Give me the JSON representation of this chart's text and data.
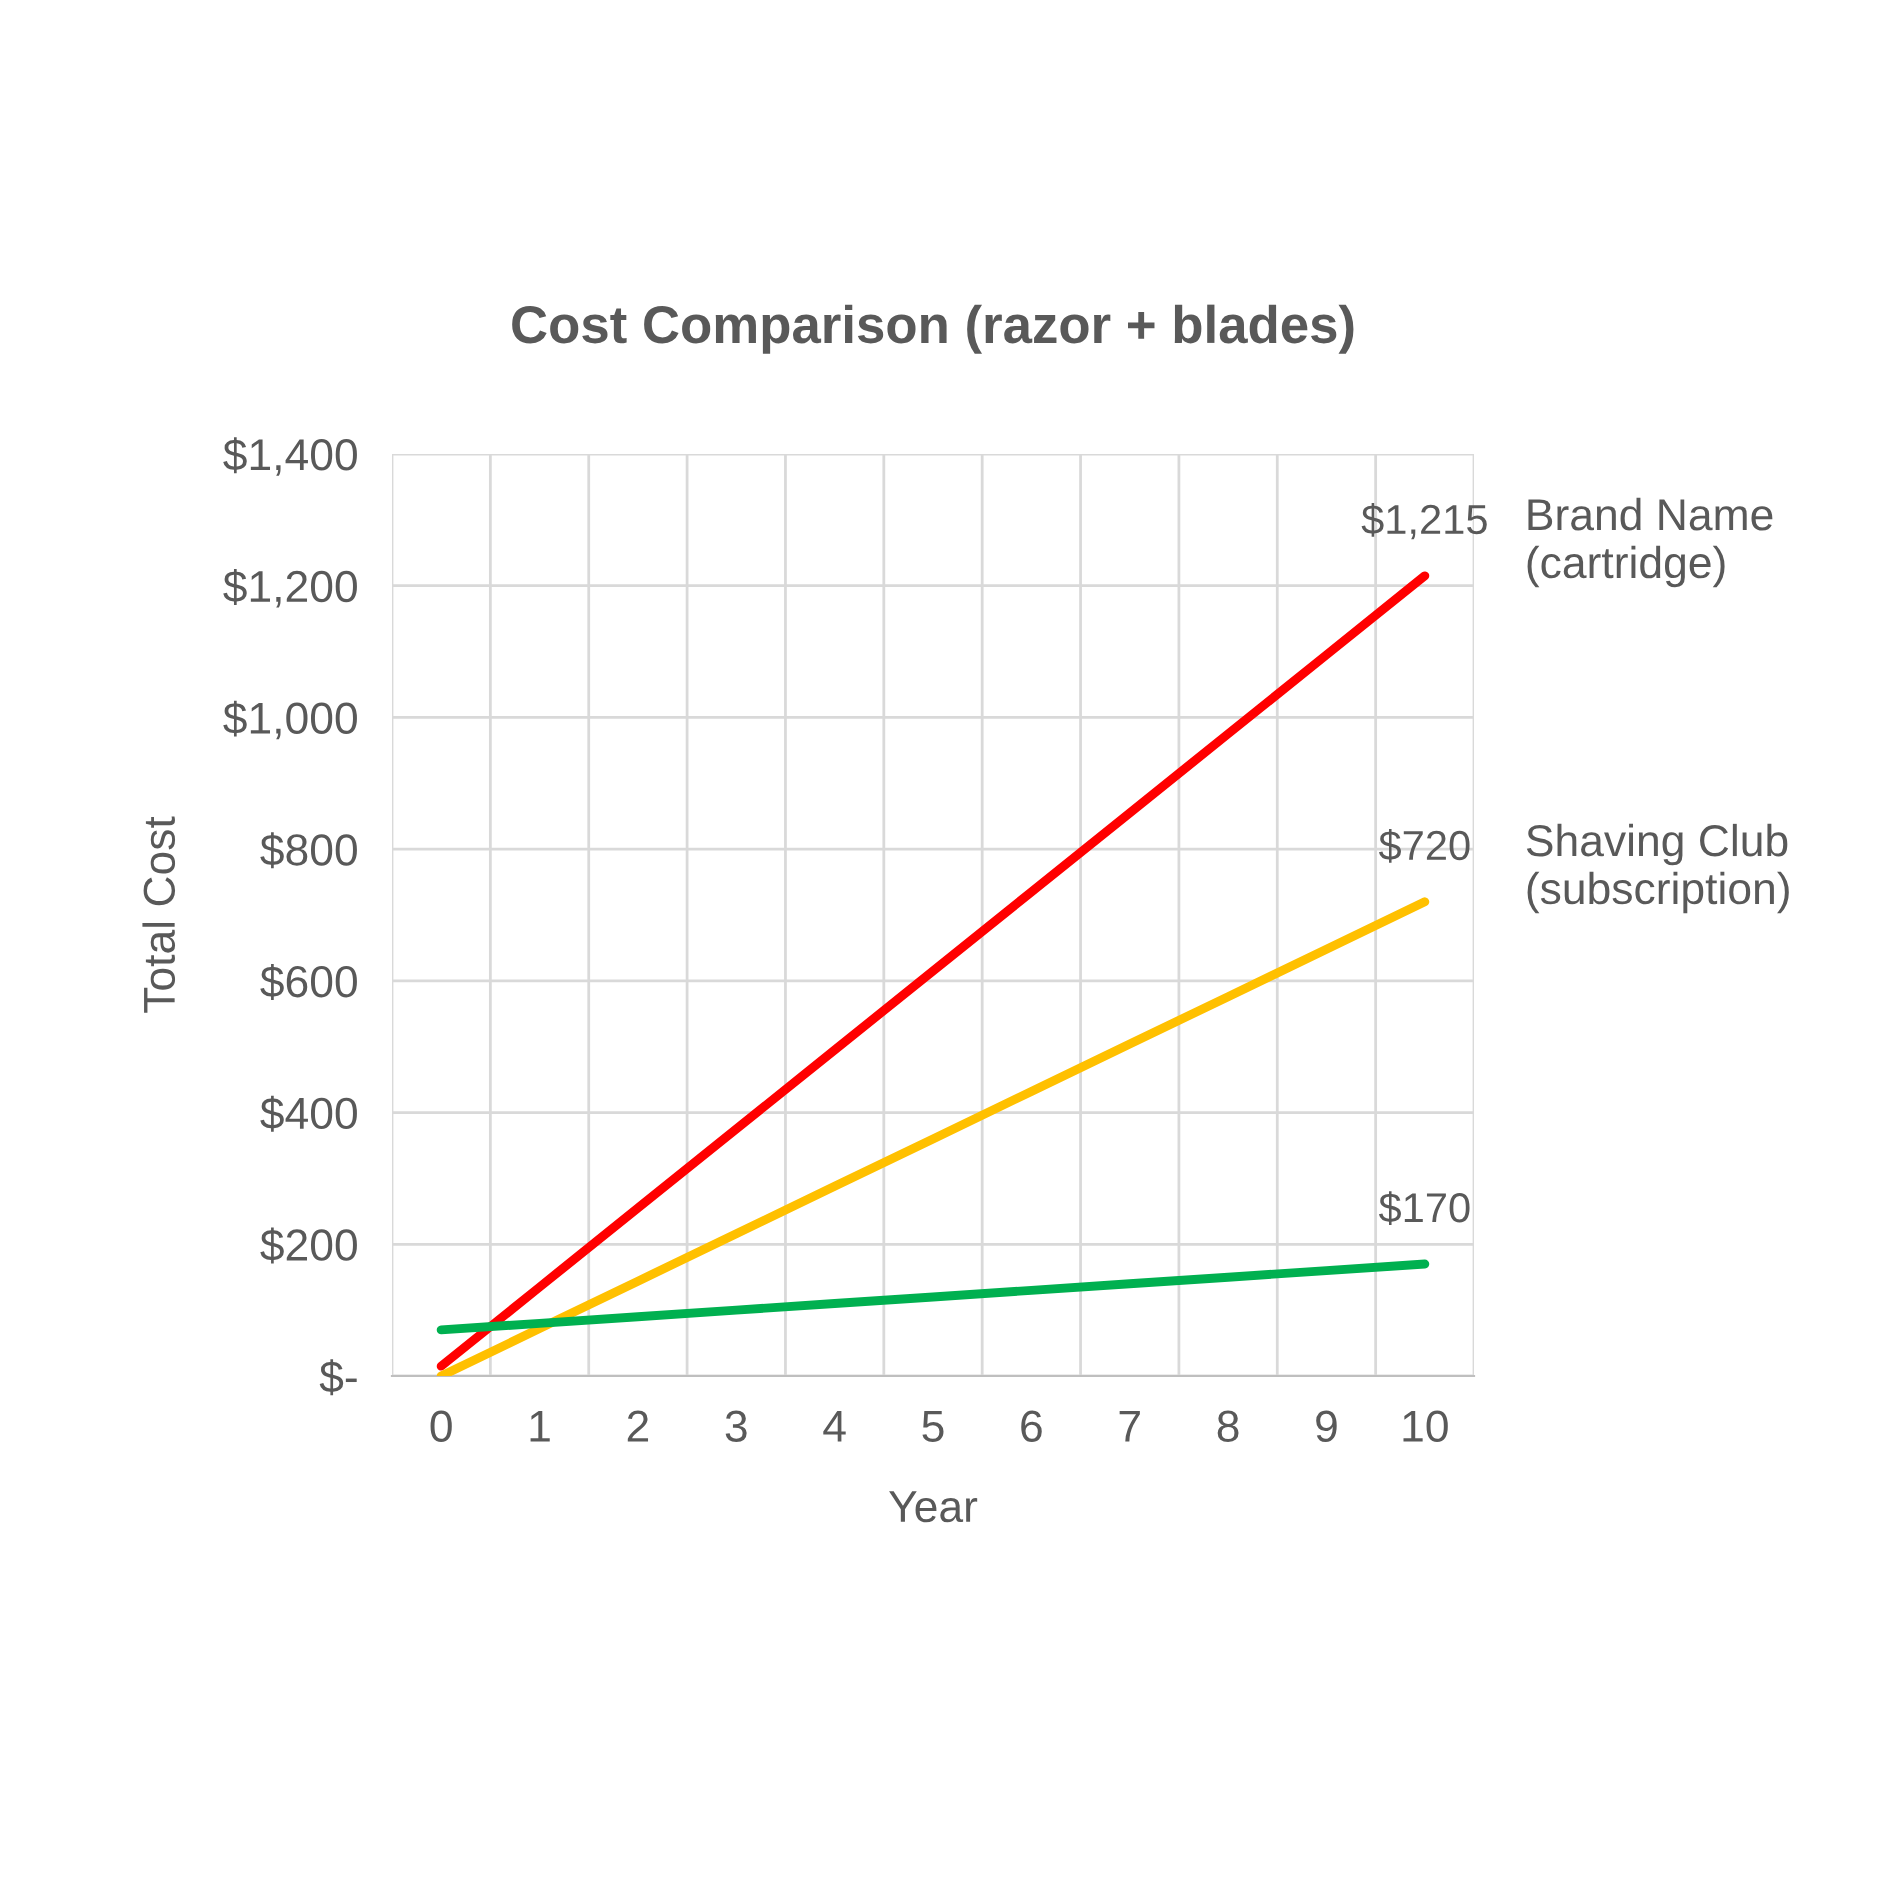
{
  "chart_data": {
    "type": "line",
    "title": "Cost Comparison (razor + blades)",
    "xlabel": "Year",
    "ylabel": "Total Cost",
    "categories": [
      "0",
      "1",
      "2",
      "3",
      "4",
      "5",
      "6",
      "7",
      "8",
      "9",
      "10"
    ],
    "series": [
      {
        "name": "Brand Name\n(cartridge)",
        "color": "#ff0000",
        "values": [
          15,
          135,
          255,
          375,
          495,
          615,
          735,
          855,
          975,
          1095,
          1215
        ],
        "value_labels": [
          null,
          null,
          null,
          null,
          null,
          null,
          null,
          null,
          null,
          null,
          "$1,215"
        ]
      },
      {
        "name": "Shaving Club\n(subscription)",
        "color": "#ffc000",
        "values": [
          0,
          72,
          144,
          216,
          288,
          360,
          432,
          504,
          576,
          648,
          720
        ],
        "value_labels": [
          null,
          null,
          null,
          null,
          null,
          null,
          null,
          null,
          null,
          null,
          "$720"
        ]
      },
      {
        "color": "#00b050",
        "values": [
          70,
          80,
          90,
          100,
          110,
          120,
          130,
          140,
          150,
          160,
          170
        ],
        "value_labels": [
          null,
          null,
          null,
          null,
          null,
          null,
          null,
          null,
          null,
          null,
          "$170"
        ]
      }
    ],
    "ylim": [
      0,
      1400
    ],
    "yticks": [
      {
        "value": 0,
        "label": "$-"
      },
      {
        "value": 200,
        "label": "$200"
      },
      {
        "value": 400,
        "label": "$400"
      },
      {
        "value": 600,
        "label": "$600"
      },
      {
        "value": 800,
        "label": "$800"
      },
      {
        "value": 1000,
        "label": "$1,000"
      },
      {
        "value": 1200,
        "label": "$1,200"
      },
      {
        "value": 1400,
        "label": "$1,400"
      }
    ],
    "grid": true,
    "legend": false,
    "marker": "none",
    "line_style": "solid"
  }
}
